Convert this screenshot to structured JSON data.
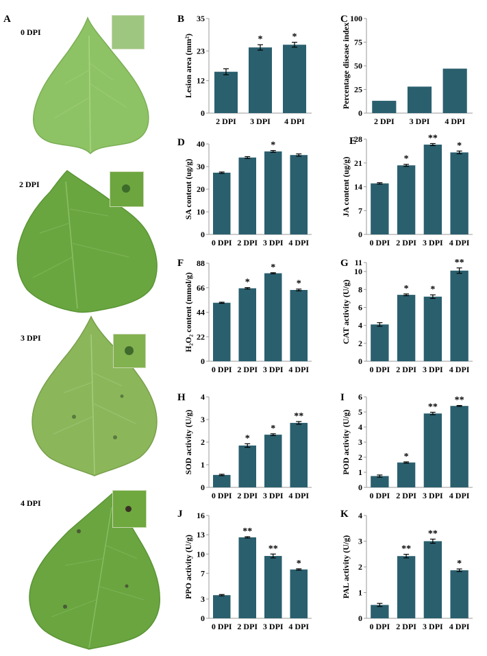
{
  "panel_a": {
    "letter": "A",
    "leaves": [
      {
        "label": "0 DPI",
        "color": "#8dc262"
      },
      {
        "label": "2 DPI",
        "color": "#6ea844"
      },
      {
        "label": "3 DPI",
        "color": "#8ab65a"
      },
      {
        "label": "4 DPI",
        "color": "#6aa540"
      }
    ]
  },
  "chart_data": [
    {
      "id": "B",
      "type": "bar",
      "categories": [
        "2 DPI",
        "3 DPI",
        "4 DPI"
      ],
      "values": [
        15.3,
        24.3,
        25.3
      ],
      "errors": [
        1.1,
        1.0,
        0.9
      ],
      "sig": [
        "",
        "*",
        "*"
      ],
      "ylabel": "Lesion area (mm²)",
      "ylim": [
        0,
        35
      ],
      "yticks": [
        "0",
        "12",
        "23",
        "35"
      ]
    },
    {
      "id": "C",
      "type": "bar",
      "categories": [
        "2 DPI",
        "3 DPI",
        "4 DPI"
      ],
      "values": [
        13,
        28,
        47
      ],
      "errors": [
        0,
        0,
        0
      ],
      "sig": [
        "",
        "",
        ""
      ],
      "ylabel": "Percentage disease index",
      "ylim": [
        0,
        100
      ],
      "yticks": [
        "0",
        "25",
        "50",
        "75",
        "100"
      ]
    },
    {
      "id": "D",
      "type": "bar",
      "categories": [
        "0 DPI",
        "2 DPI",
        "3 DPI",
        "4 DPI"
      ],
      "values": [
        27.3,
        34.0,
        36.7,
        35.1
      ],
      "errors": [
        0.3,
        0.4,
        0.4,
        0.5
      ],
      "sig": [
        "",
        "",
        "*",
        ""
      ],
      "ylabel": "SA content (ug/g)",
      "ylim": [
        0,
        40
      ],
      "yticks": [
        "0",
        "10",
        "20",
        "30",
        "40"
      ]
    },
    {
      "id": "E",
      "type": "bar",
      "categories": [
        "0 DPI",
        "2 DPI",
        "3 DPI",
        "4 DPI"
      ],
      "values": [
        15.0,
        20.3,
        26.4,
        24.1
      ],
      "errors": [
        0.2,
        0.3,
        0.3,
        0.4
      ],
      "sig": [
        "",
        "*",
        "**",
        "*"
      ],
      "ylabel": "JA content  (ug/g)",
      "ylim": [
        0,
        28
      ],
      "yticks": [
        "0",
        "7",
        "14",
        "21",
        "28"
      ]
    },
    {
      "id": "F",
      "type": "bar",
      "categories": [
        "0 DPI",
        "2 DPI",
        "3 DPI",
        "4 DPI"
      ],
      "values": [
        52.5,
        65.5,
        79.0,
        64.0
      ],
      "errors": [
        0.5,
        0.6,
        0.5,
        0.8
      ],
      "sig": [
        "",
        "*",
        "*",
        "*"
      ],
      "ylabel": "H₂O₂ content (mmol/g)",
      "ylim": [
        0,
        88
      ],
      "yticks": [
        "0",
        "22",
        "44",
        "66",
        "88"
      ]
    },
    {
      "id": "G",
      "type": "bar",
      "categories": [
        "0 DPI",
        "2 DPI",
        "3 DPI",
        "4 DPI"
      ],
      "values": [
        4.1,
        7.4,
        7.2,
        10.1
      ],
      "errors": [
        0.2,
        0.1,
        0.2,
        0.3
      ],
      "sig": [
        "",
        "*",
        "*",
        "**"
      ],
      "ylabel": "CAT activity (U/g)",
      "ylim": [
        0,
        11
      ],
      "yticks": [
        "0",
        "2",
        "4",
        "6",
        "8",
        "10",
        "11"
      ]
    },
    {
      "id": "H",
      "type": "bar",
      "categories": [
        "0 DPI",
        "2 DPI",
        "3 DPI",
        "4 DPI"
      ],
      "values": [
        0.55,
        1.85,
        2.33,
        2.85
      ],
      "errors": [
        0.03,
        0.08,
        0.04,
        0.06
      ],
      "sig": [
        "",
        "*",
        "*",
        "**"
      ],
      "ylabel": "SOD activity (U/g)",
      "ylim": [
        0,
        4
      ],
      "yticks": [
        "0",
        "1",
        "2",
        "3",
        "4"
      ]
    },
    {
      "id": "I",
      "type": "bar",
      "categories": [
        "0 DPI",
        "2 DPI",
        "3 DPI",
        "4 DPI"
      ],
      "values": [
        0.75,
        1.65,
        4.9,
        5.4
      ],
      "errors": [
        0.07,
        0.04,
        0.08,
        0.03
      ],
      "sig": [
        "",
        "*",
        "**",
        "**"
      ],
      "ylabel": "POD activity (U/g)",
      "ylim": [
        0,
        6
      ],
      "yticks": [
        "0",
        "1",
        "2",
        "3",
        "4",
        "5",
        "6"
      ]
    },
    {
      "id": "J",
      "type": "bar",
      "categories": [
        "0 DPI",
        "2 DPI",
        "3 DPI",
        "4 DPI"
      ],
      "values": [
        3.6,
        12.6,
        9.7,
        7.6
      ],
      "errors": [
        0.1,
        0.1,
        0.3,
        0.1
      ],
      "sig": [
        "",
        "**",
        "**",
        "*"
      ],
      "ylabel": "PPO  activity (U/g)",
      "ylim": [
        0,
        16
      ],
      "yticks": [
        "0",
        "3",
        "7",
        "10",
        "13",
        "16"
      ]
    },
    {
      "id": "K",
      "type": "bar",
      "categories": [
        "0 DPI",
        "2 DPI",
        "3 DPI",
        "4 DPI"
      ],
      "values": [
        0.52,
        2.42,
        3.0,
        1.87
      ],
      "errors": [
        0.06,
        0.07,
        0.08,
        0.05
      ],
      "sig": [
        "",
        "**",
        "**",
        "*"
      ],
      "ylabel": "PAL  activity (U/g)",
      "ylim": [
        0,
        4
      ],
      "yticks": [
        "0",
        "1",
        "2",
        "3",
        "4"
      ]
    }
  ],
  "colors": {
    "bar": "#2a5f6e",
    "axis": "#999999",
    "error": "#000000"
  }
}
